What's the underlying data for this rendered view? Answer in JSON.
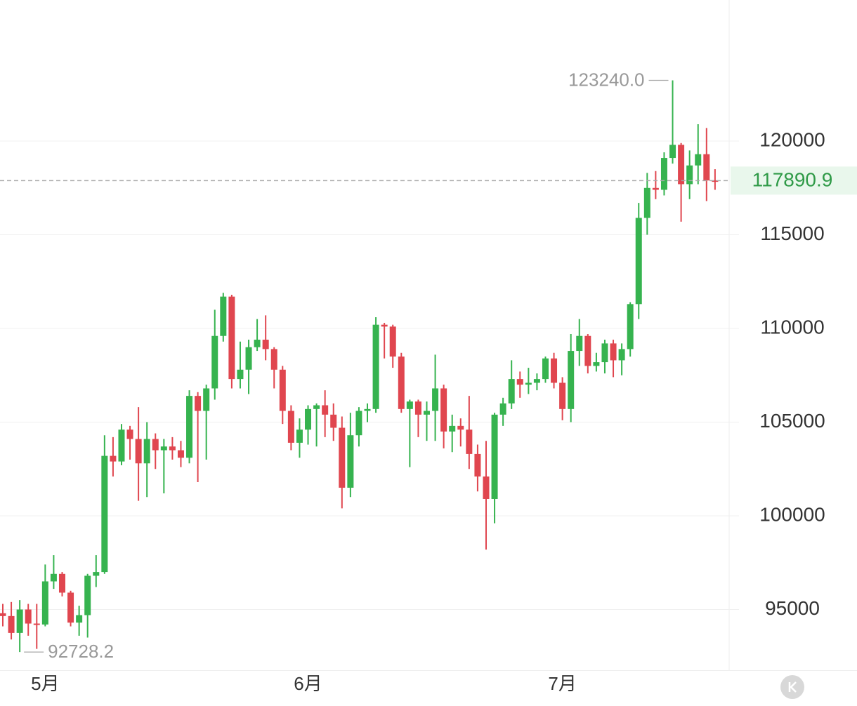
{
  "chart_data": {
    "type": "candlestick",
    "categories": [
      null,
      null,
      null,
      null,
      null,
      "5月",
      null,
      null,
      null,
      null,
      null,
      null,
      null,
      null,
      null,
      null,
      null,
      null,
      null,
      null,
      null,
      null,
      null,
      null,
      null,
      null,
      null,
      null,
      null,
      null,
      null,
      null,
      null,
      null,
      null,
      null,
      "6月",
      null,
      null,
      null,
      null,
      null,
      null,
      null,
      null,
      null,
      null,
      null,
      null,
      null,
      null,
      null,
      null,
      null,
      null,
      null,
      null,
      null,
      null,
      null,
      null,
      null,
      null,
      null,
      null,
      null,
      "7月",
      null,
      null,
      null,
      null,
      null,
      null,
      null,
      null,
      null,
      null,
      null,
      null,
      null,
      null,
      null,
      null,
      null,
      null
    ],
    "open": [
      94800,
      94650,
      93750,
      95000,
      94250,
      94200,
      96500,
      96900,
      95900,
      94300,
      94700,
      96800,
      97000,
      103200,
      102900,
      104600,
      104100,
      102800,
      104100,
      103500,
      103700,
      103500,
      103100,
      106400,
      105600,
      106800,
      109600,
      111700,
      107300,
      107800,
      109000,
      109400,
      108900,
      107800,
      105600,
      103900,
      104600,
      105700,
      105900,
      105400,
      104700,
      101500,
      104300,
      105600,
      105700,
      110200,
      110100,
      108500,
      105700,
      106100,
      105400,
      105600,
      106800,
      104500,
      104800,
      104600,
      103300,
      102100,
      100900,
      105400,
      106000,
      107300,
      107000,
      107100,
      107300,
      108400,
      107100,
      105700,
      108800,
      109600,
      108000,
      108200,
      109200,
      108300,
      108900,
      111300,
      115900,
      117500,
      117400,
      119100,
      119800,
      117700,
      118700,
      119300,
      117900
    ],
    "high": [
      95300,
      95400,
      95500,
      95300,
      95300,
      97400,
      97900,
      97000,
      96000,
      95200,
      96900,
      97900,
      104300,
      104200,
      104900,
      104800,
      105800,
      105000,
      104400,
      104100,
      104200,
      104000,
      106700,
      106600,
      107000,
      111000,
      111900,
      111800,
      109300,
      109400,
      110500,
      110700,
      109000,
      108000,
      105900,
      105200,
      105900,
      106000,
      106700,
      106000,
      105300,
      105500,
      105800,
      106000,
      110600,
      110300,
      110200,
      108700,
      106200,
      106200,
      106100,
      108600,
      107000,
      105400,
      105200,
      106400,
      103800,
      104000,
      105500,
      106300,
      108300,
      107700,
      107900,
      107600,
      108500,
      108700,
      107400,
      109700,
      110500,
      109700,
      108700,
      109400,
      109400,
      109200,
      111400,
      116700,
      118300,
      118400,
      119400,
      123240,
      119900,
      119500,
      120900,
      120700,
      118500
    ],
    "low": [
      94100,
      93400,
      92728.2,
      93600,
      92900,
      94100,
      96100,
      95700,
      94100,
      93600,
      93500,
      96200,
      96900,
      102100,
      102700,
      103000,
      100800,
      101000,
      102500,
      101200,
      103000,
      102600,
      102800,
      101800,
      103000,
      106200,
      109300,
      106800,
      106800,
      106500,
      108800,
      108300,
      106800,
      104900,
      103500,
      103100,
      103800,
      103700,
      104200,
      104000,
      100400,
      101000,
      103700,
      105000,
      105500,
      108400,
      107900,
      105500,
      102600,
      104200,
      104000,
      104000,
      103600,
      103400,
      103700,
      102500,
      101300,
      98200,
      99600,
      104800,
      105700,
      106300,
      106500,
      106700,
      107100,
      106800,
      105100,
      105000,
      108000,
      107600,
      107700,
      107600,
      107400,
      107500,
      108500,
      110500,
      115000,
      116900,
      117100,
      118800,
      115700,
      116900,
      117700,
      116800,
      117400
    ],
    "close": [
      94650,
      93750,
      95000,
      94250,
      94200,
      96500,
      96900,
      95900,
      94300,
      94700,
      96800,
      97000,
      103200,
      102900,
      104600,
      104100,
      102800,
      104100,
      103500,
      103700,
      103500,
      103100,
      106400,
      105600,
      106800,
      109600,
      111700,
      107300,
      107800,
      109000,
      109400,
      108900,
      107800,
      105600,
      103900,
      104600,
      105700,
      105900,
      105400,
      104700,
      101500,
      104300,
      105600,
      105700,
      110200,
      110100,
      108500,
      105700,
      106100,
      105400,
      105600,
      106800,
      104500,
      104800,
      104600,
      103300,
      102100,
      100900,
      105400,
      106000,
      107300,
      107000,
      107100,
      107300,
      108400,
      107100,
      105700,
      108800,
      109600,
      108000,
      108200,
      109200,
      108300,
      108900,
      111300,
      115900,
      117500,
      117400,
      119100,
      119800,
      117700,
      118700,
      119300,
      117900,
      117890.9
    ],
    "up_color": "#36b34f",
    "down_color": "#e0464f",
    "ylim": [
      91760,
      127530
    ],
    "yticks": [
      95000,
      100000,
      105000,
      110000,
      115000,
      120000
    ],
    "grid": true,
    "max_label": {
      "value": 123240,
      "label": "123240.0"
    },
    "min_label": 92728.2,
    "last_price": 117890.9
  }
}
